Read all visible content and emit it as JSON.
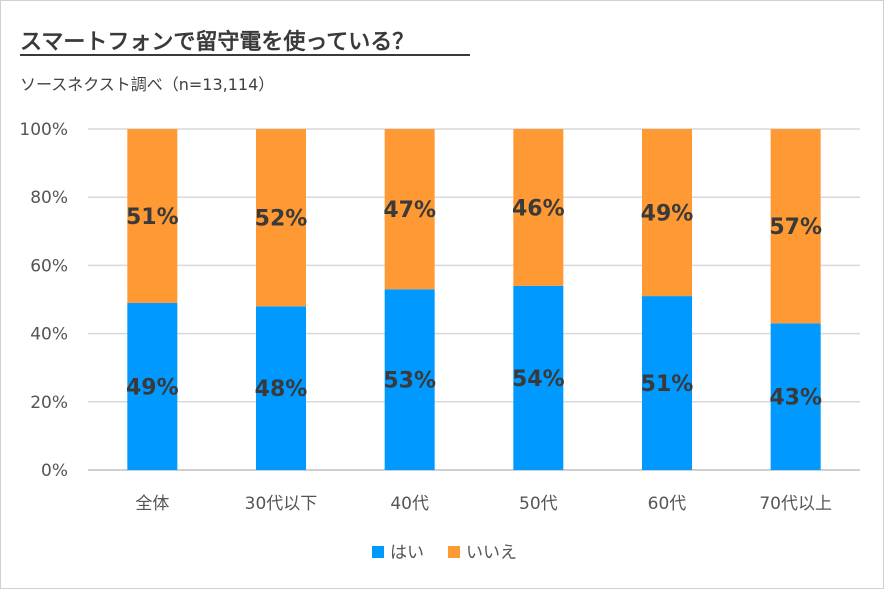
{
  "chart_data": {
    "type": "bar",
    "stacked": true,
    "percent_stacked": true,
    "title": "スマートフォンで留守電を使っている？",
    "subtitle": "ソースネクスト調べ（n=13,114）",
    "categories": [
      "全体",
      "30代以下",
      "40代",
      "50代",
      "60代",
      "70代以上"
    ],
    "series": [
      {
        "name": "はい",
        "color": "#0099ff",
        "values": [
          49,
          48,
          53,
          54,
          51,
          43
        ]
      },
      {
        "name": "いいえ",
        "color": "#ff9933",
        "values": [
          51,
          52,
          47,
          46,
          49,
          57
        ]
      }
    ],
    "ylim": [
      0,
      100
    ],
    "yticks": [
      "0%",
      "20%",
      "40%",
      "60%",
      "80%",
      "100%"
    ],
    "ytick_values": [
      0,
      20,
      40,
      60,
      80,
      100
    ],
    "grid": true,
    "legend_position": "bottom",
    "value_suffix": "%"
  }
}
